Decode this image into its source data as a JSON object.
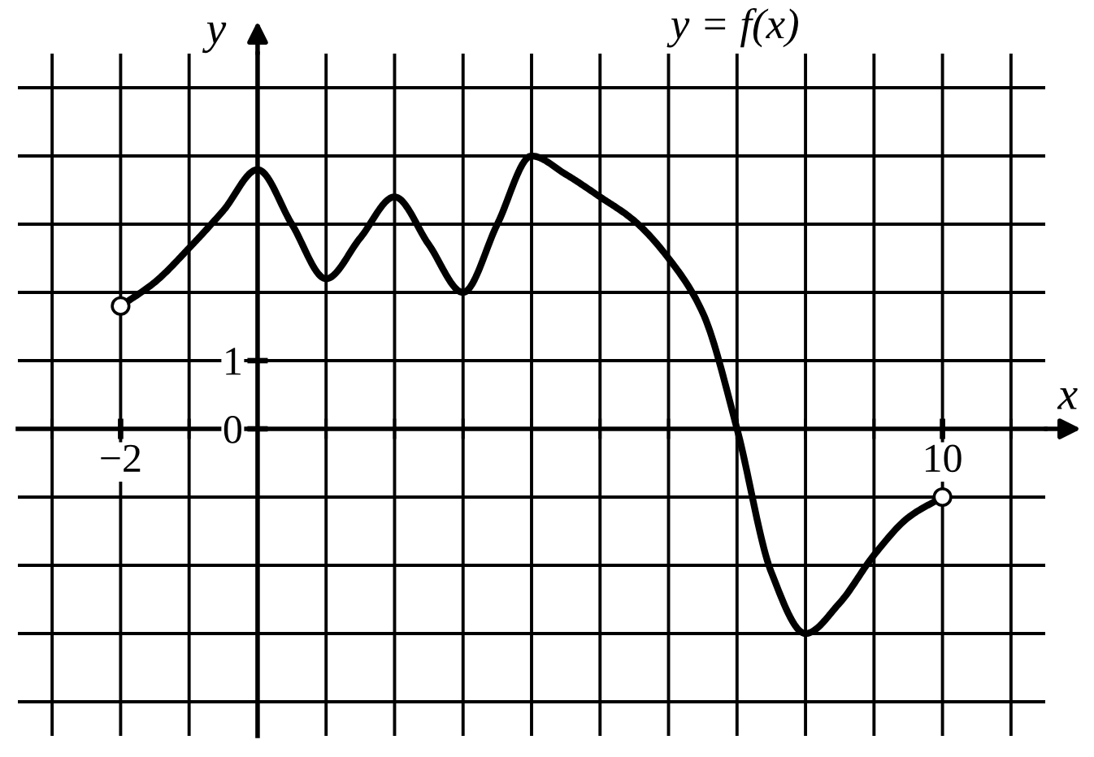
{
  "chart_data": {
    "type": "line",
    "title": "y = f(x)",
    "xlabel": "x",
    "ylabel": "y",
    "series": [
      {
        "color": "#000000",
        "marker": "none",
        "x": [
          -2,
          -1.5,
          -1,
          -0.5,
          0,
          0.5,
          1,
          1.5,
          2,
          2.5,
          3,
          3.5,
          4,
          4.5,
          5,
          5.5,
          6,
          6.5,
          7,
          7.5,
          8,
          8.5,
          9,
          9.5,
          10
        ],
        "values": [
          1.8,
          2.15,
          2.65,
          3.2,
          3.8,
          3.0,
          2.2,
          2.8,
          3.4,
          2.7,
          2.0,
          3.0,
          4.0,
          3.73,
          3.4,
          3.05,
          2.5,
          1.7,
          0,
          -2.1,
          -3,
          -2.55,
          -1.85,
          -1.3,
          -1
        ]
      },
      {
        "type": "scatter",
        "color": "#000000",
        "marker": "circle",
        "x": [
          -2,
          10
        ],
        "values": [
          1.8,
          -1
        ]
      }
    ],
    "xlim": [
      -3.5,
      11.5
    ],
    "ylim": [
      -4.5,
      5.5
    ],
    "xticks": [
      {
        "value": -3,
        "label": null
      },
      {
        "value": -2,
        "label": "−2"
      },
      {
        "value": -1,
        "label": null
      },
      {
        "value": 0,
        "label": null
      },
      {
        "value": 1,
        "label": null
      },
      {
        "value": 2,
        "label": null
      },
      {
        "value": 3,
        "label": null
      },
      {
        "value": 4,
        "label": null
      },
      {
        "value": 5,
        "label": null
      },
      {
        "value": 6,
        "label": null
      },
      {
        "value": 7,
        "label": null
      },
      {
        "value": 8,
        "label": null
      },
      {
        "value": 9,
        "label": null
      },
      {
        "value": 10,
        "label": "10"
      },
      {
        "value": 11,
        "label": null
      }
    ],
    "yticks": [
      {
        "value": -4,
        "label": null
      },
      {
        "value": -3,
        "label": null
      },
      {
        "value": -2,
        "label": null
      },
      {
        "value": -1,
        "label": null
      },
      {
        "value": 0,
        "label": "0"
      },
      1,
      {
        "value": 2,
        "label": null
      },
      {
        "value": 3,
        "label": null
      },
      {
        "value": 4,
        "label": null
      },
      {
        "value": 5,
        "label": null
      }
    ],
    "grid": true
  }
}
